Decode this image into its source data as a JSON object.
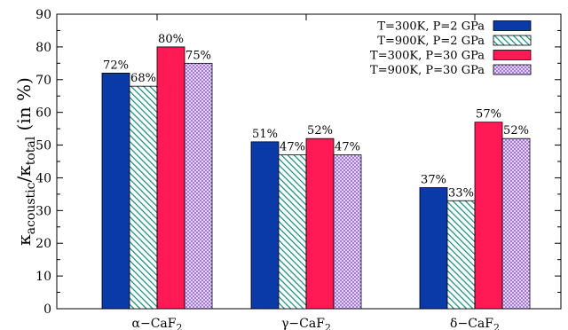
{
  "chart_data": {
    "type": "bar",
    "title": "",
    "xlabel": "",
    "ylabel": {
      "kappa": "κ",
      "sub_acoustic": "acoustic",
      "slash": "/",
      "sub_total": "total",
      "suffix": " (in %)"
    },
    "ylim": [
      0,
      90
    ],
    "yticks": [
      0,
      10,
      20,
      30,
      40,
      50,
      60,
      70,
      80,
      90
    ],
    "categories": [
      {
        "base": "α−CaF",
        "sub": "2"
      },
      {
        "base": "γ−CaF",
        "sub": "2"
      },
      {
        "base": "δ−CaF",
        "sub": "2"
      }
    ],
    "series": [
      {
        "name": "T=300K, P=2 GPa",
        "values": [
          72,
          51,
          37
        ],
        "labels": [
          "72%",
          "51%",
          "37%"
        ],
        "color": "#0a3aa8",
        "pattern": "solid"
      },
      {
        "name": "T=900K, P=2 GPa",
        "values": [
          68,
          47,
          33
        ],
        "labels": [
          "68%",
          "47%",
          "33%"
        ],
        "color": "#0f8a7a",
        "pattern": "hatch"
      },
      {
        "name": "T=300K, P=30 GPa",
        "values": [
          80,
          52,
          57
        ],
        "labels": [
          "80%",
          "52%",
          "57%"
        ],
        "color": "#ff1a55",
        "pattern": "solid"
      },
      {
        "name": "T=900K, P=30 GPa",
        "values": [
          75,
          47,
          52
        ],
        "labels": [
          "75%",
          "47%",
          "52%"
        ],
        "color": "#a070e0",
        "pattern": "crosshatch"
      }
    ],
    "legend_position": "top-right",
    "grid": false
  }
}
